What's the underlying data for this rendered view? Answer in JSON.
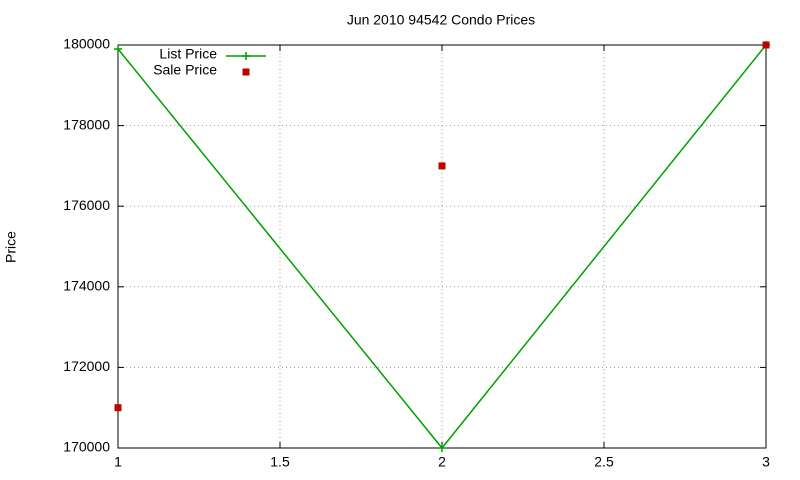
{
  "chart_data": {
    "type": "line",
    "title": "Jun 2010 94542 Condo Prices",
    "y_label": "Price",
    "x": [
      1,
      2,
      3
    ],
    "xlim": [
      1,
      3
    ],
    "xticks": [
      1,
      1.5,
      2,
      2.5,
      3
    ],
    "ylim": [
      170000,
      180000
    ],
    "yticks": [
      170000,
      172000,
      174000,
      176000,
      178000,
      180000
    ],
    "grid": true,
    "legend": "top-left",
    "series": [
      {
        "name": "List Price",
        "color": "#00a000",
        "style": "linespoints",
        "marker": "plus",
        "values": [
          179900,
          170000,
          180000
        ]
      },
      {
        "name": "Sale Price",
        "color": "#c00000",
        "style": "points",
        "marker": "square",
        "values": [
          171000,
          177000,
          180000
        ]
      }
    ]
  }
}
